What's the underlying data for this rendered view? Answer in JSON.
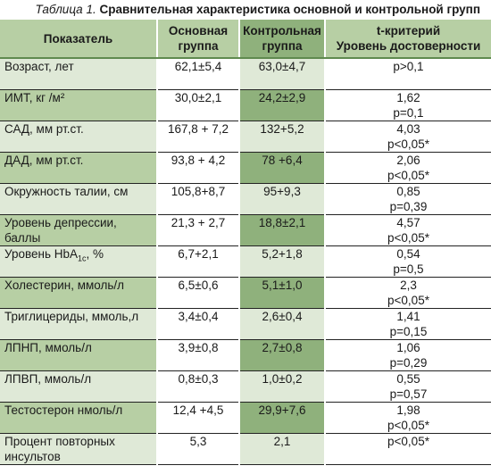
{
  "caption": {
    "number": "Таблица 1.",
    "title": "Сравнительная характеристика основной и контрольной групп"
  },
  "header": {
    "indicator": "Показатель",
    "main_group_line1": "Основная",
    "main_group_line2": "группа",
    "control_group_line1": "Контрольная",
    "control_group_line2": "группа",
    "stat_line1": "t-критерий",
    "stat_line2": "Уровень достоверности"
  },
  "rows": [
    {
      "label": "Возраст, лет",
      "main": "62,1±5,4",
      "control": "63,0±4,7",
      "t": "p>0,1",
      "p": ""
    },
    {
      "label": "ИМТ, кг /м²",
      "main": "30,0±2,1",
      "control": "24,2±2,9",
      "t": "1,62",
      "p": "p=0,1"
    },
    {
      "label": "САД, мм рт.ст.",
      "main": "167,8 + 7,2",
      "control": "132+5,2",
      "t": "4,03",
      "p": "p<0,05*"
    },
    {
      "label": "ДАД, мм рт.ст.",
      "main": "93,8 + 4,2",
      "control": "78 +6,4",
      "t": "2,06",
      "p": "p<0,05*"
    },
    {
      "label": "Окружность талии, см",
      "main": "105,8+8,7",
      "control": "95+9,3",
      "t": "0,85",
      "p": "p=0,39"
    },
    {
      "label": "Уровень депрессии,\nбаллы",
      "main": "21,3 + 2,7",
      "control": "18,8±2,1",
      "t": "4,57",
      "p": "p<0,05*"
    },
    {
      "label_pre": "Уровень HbA",
      "label_sub": "1c",
      "label_post": ", %",
      "main": "6,7+2,1",
      "control": "5,2+1,8",
      "t": "0,54",
      "p": "p=0,5"
    },
    {
      "label": "Холестерин, ммоль/л",
      "main": "6,5±0,6",
      "control": "5,1±1,0",
      "t": "2,3",
      "p": "p<0,05*"
    },
    {
      "label": "Триглицериды, ммоль,л",
      "main": "3,4±0,4",
      "control": "2,6±0,4",
      "t": "1,41",
      "p": "p=0,15"
    },
    {
      "label": "ЛПНП, ммоль/л",
      "main": "3,9±0,8",
      "control": "2,7±0,8",
      "t": "1,06",
      "p": "p=0,29"
    },
    {
      "label": "ЛПВП, ммоль/л",
      "main": "0,8±0,3",
      "control": "1,0±0,2",
      "t": "0,55",
      "p": "p=0,57"
    },
    {
      "label": "Тестостерон нмоль/л",
      "main": "12,4 +4,5",
      "control": "29,9+7,6",
      "t": "1,98",
      "p": "p<0,05*"
    },
    {
      "label": "Процент повторных\nинсультов",
      "main": "5,3",
      "control": "2,1",
      "t": "p<0,05*",
      "p": ""
    }
  ]
}
